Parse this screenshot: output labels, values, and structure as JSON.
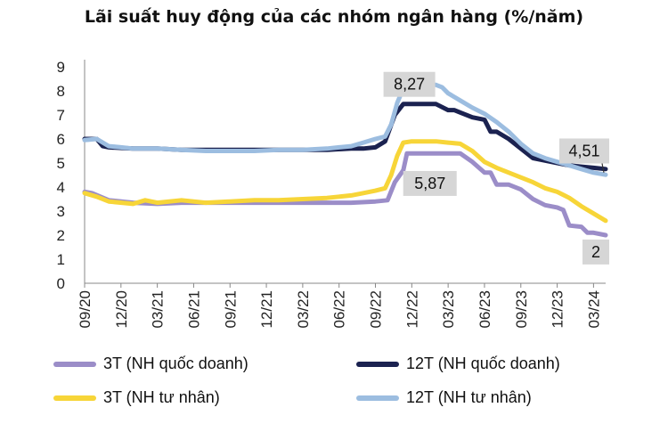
{
  "title": "Lãi suất huy động của các nhóm ngân hàng (%/năm)",
  "chart_data": {
    "type": "line",
    "title": "Lãi suất huy động của các nhóm ngân hàng (%/năm)",
    "xlabel": "",
    "ylabel": "",
    "ylim": [
      0,
      9
    ],
    "yticks": [
      "0",
      "1",
      "2",
      "3",
      "4",
      "5",
      "6",
      "7",
      "8",
      "9"
    ],
    "xlim": [
      0,
      43
    ],
    "xticks": [
      {
        "label": "09/20",
        "x": 0
      },
      {
        "label": "12/20",
        "x": 3
      },
      {
        "label": "03/21",
        "x": 6
      },
      {
        "label": "06/21",
        "x": 9
      },
      {
        "label": "09/21",
        "x": 12
      },
      {
        "label": "12/21",
        "x": 15
      },
      {
        "label": "03/22",
        "x": 18
      },
      {
        "label": "06/22",
        "x": 21
      },
      {
        "label": "09/22",
        "x": 24
      },
      {
        "label": "12/22",
        "x": 27
      },
      {
        "label": "03/23",
        "x": 30
      },
      {
        "label": "06/23",
        "x": 33
      },
      {
        "label": "09/23",
        "x": 36
      },
      {
        "label": "12/23",
        "x": 39
      },
      {
        "label": "03/24",
        "x": 42
      }
    ],
    "series": [
      {
        "name": "3T (NH quốc doanh)",
        "color": "#9b8dc8",
        "points": [
          [
            0,
            3.8
          ],
          [
            0.6,
            3.75
          ],
          [
            2,
            3.45
          ],
          [
            4,
            3.35
          ],
          [
            6,
            3.3
          ],
          [
            8,
            3.35
          ],
          [
            10,
            3.35
          ],
          [
            12,
            3.35
          ],
          [
            14,
            3.35
          ],
          [
            16,
            3.35
          ],
          [
            18,
            3.35
          ],
          [
            20,
            3.35
          ],
          [
            22,
            3.35
          ],
          [
            24,
            3.4
          ],
          [
            25,
            3.45
          ],
          [
            25.6,
            4.2
          ],
          [
            26.3,
            4.7
          ],
          [
            26.6,
            5.4
          ],
          [
            27,
            5.4
          ],
          [
            28,
            5.4
          ],
          [
            29,
            5.4
          ],
          [
            30,
            5.4
          ],
          [
            31,
            5.4
          ],
          [
            32,
            5.05
          ],
          [
            33,
            4.6
          ],
          [
            33.5,
            4.6
          ],
          [
            34,
            4.1
          ],
          [
            35,
            4.1
          ],
          [
            36,
            3.9
          ],
          [
            37,
            3.5
          ],
          [
            38,
            3.25
          ],
          [
            39,
            3.15
          ],
          [
            39.5,
            3.05
          ],
          [
            40,
            2.4
          ],
          [
            41,
            2.35
          ],
          [
            41.5,
            2.1
          ],
          [
            42,
            2.1
          ],
          [
            43,
            2.0
          ]
        ]
      },
      {
        "name": "12T (NH quốc doanh)",
        "color": "#1b2250",
        "points": [
          [
            0,
            6.0
          ],
          [
            1,
            6.0
          ],
          [
            1.5,
            5.7
          ],
          [
            2,
            5.65
          ],
          [
            4,
            5.6
          ],
          [
            6,
            5.6
          ],
          [
            8,
            5.55
          ],
          [
            10,
            5.55
          ],
          [
            12,
            5.55
          ],
          [
            14,
            5.55
          ],
          [
            16,
            5.55
          ],
          [
            18,
            5.55
          ],
          [
            20,
            5.55
          ],
          [
            22,
            5.6
          ],
          [
            23,
            5.6
          ],
          [
            24,
            5.65
          ],
          [
            24.8,
            5.9
          ],
          [
            25.6,
            7.0
          ],
          [
            26.3,
            7.45
          ],
          [
            27,
            7.45
          ],
          [
            28,
            7.45
          ],
          [
            29,
            7.45
          ],
          [
            30,
            7.2
          ],
          [
            30.5,
            7.2
          ],
          [
            31,
            7.1
          ],
          [
            32,
            6.9
          ],
          [
            33,
            6.8
          ],
          [
            33.5,
            6.3
          ],
          [
            34,
            6.3
          ],
          [
            35,
            6.0
          ],
          [
            36,
            5.6
          ],
          [
            37,
            5.2
          ],
          [
            38,
            5.1
          ],
          [
            39,
            5.0
          ],
          [
            40,
            4.9
          ],
          [
            41,
            4.85
          ],
          [
            42,
            4.8
          ],
          [
            43,
            4.75
          ]
        ]
      },
      {
        "name": "3T (NH tư nhân)",
        "color": "#f7d538",
        "points": [
          [
            0,
            3.75
          ],
          [
            1,
            3.6
          ],
          [
            2,
            3.4
          ],
          [
            4,
            3.3
          ],
          [
            5,
            3.45
          ],
          [
            6,
            3.35
          ],
          [
            8,
            3.45
          ],
          [
            10,
            3.35
          ],
          [
            12,
            3.4
          ],
          [
            14,
            3.45
          ],
          [
            16,
            3.45
          ],
          [
            18,
            3.5
          ],
          [
            20,
            3.55
          ],
          [
            21,
            3.6
          ],
          [
            22,
            3.65
          ],
          [
            23,
            3.75
          ],
          [
            24,
            3.85
          ],
          [
            24.8,
            3.95
          ],
          [
            25.3,
            4.5
          ],
          [
            25.8,
            5.3
          ],
          [
            26.3,
            5.85
          ],
          [
            27,
            5.9
          ],
          [
            28,
            5.9
          ],
          [
            29,
            5.9
          ],
          [
            30,
            5.85
          ],
          [
            31,
            5.8
          ],
          [
            32,
            5.5
          ],
          [
            33,
            5.05
          ],
          [
            34,
            4.8
          ],
          [
            35,
            4.6
          ],
          [
            36,
            4.4
          ],
          [
            37,
            4.2
          ],
          [
            38,
            3.95
          ],
          [
            39,
            3.8
          ],
          [
            40,
            3.55
          ],
          [
            41,
            3.2
          ],
          [
            42,
            2.9
          ],
          [
            43,
            2.6
          ]
        ]
      },
      {
        "name": "12T (NH tư nhân)",
        "color": "#9cbde0",
        "points": [
          [
            0,
            5.95
          ],
          [
            1,
            6.0
          ],
          [
            2,
            5.7
          ],
          [
            3,
            5.65
          ],
          [
            4,
            5.6
          ],
          [
            6,
            5.6
          ],
          [
            8,
            5.55
          ],
          [
            10,
            5.5
          ],
          [
            12,
            5.5
          ],
          [
            14,
            5.5
          ],
          [
            16,
            5.55
          ],
          [
            18,
            5.55
          ],
          [
            20,
            5.6
          ],
          [
            21,
            5.65
          ],
          [
            22,
            5.7
          ],
          [
            23,
            5.85
          ],
          [
            24,
            6.0
          ],
          [
            24.8,
            6.1
          ],
          [
            25.3,
            6.6
          ],
          [
            25.8,
            7.5
          ],
          [
            26.3,
            8.1
          ],
          [
            26.8,
            8.25
          ],
          [
            27,
            8.27
          ],
          [
            28,
            8.27
          ],
          [
            29,
            8.25
          ],
          [
            29.5,
            8.15
          ],
          [
            30,
            7.9
          ],
          [
            31,
            7.6
          ],
          [
            32,
            7.3
          ],
          [
            33,
            7.05
          ],
          [
            34,
            6.7
          ],
          [
            35,
            6.3
          ],
          [
            36,
            5.8
          ],
          [
            37,
            5.4
          ],
          [
            38,
            5.2
          ],
          [
            39,
            5.05
          ],
          [
            40,
            4.9
          ],
          [
            41,
            4.75
          ],
          [
            42,
            4.6
          ],
          [
            43,
            4.51
          ]
        ]
      }
    ],
    "annotations": [
      {
        "text": "8,27",
        "x": 26.8,
        "y": 8.27,
        "series": "12T (NH tư nhân)"
      },
      {
        "text": "5,87",
        "x": 28.5,
        "y": 4.15,
        "series": "3T (NH tư nhân)"
      },
      {
        "text": "4,51",
        "x": 43,
        "y": 5.5,
        "series": "12T (NH tư nhân)"
      },
      {
        "text": "2",
        "x": 43,
        "y": 1.3,
        "series": "3T (NH quốc doanh)"
      }
    ],
    "legend": [
      {
        "label": "3T (NH quốc doanh)",
        "color": "#9b8dc8"
      },
      {
        "label": "12T (NH quốc doanh)",
        "color": "#1b2250"
      },
      {
        "label": "3T (NH tư nhân)",
        "color": "#f7d538"
      },
      {
        "label": "12T (NH tư nhân)",
        "color": "#9cbde0"
      }
    ],
    "legend_position": "bottom",
    "grid": false
  }
}
